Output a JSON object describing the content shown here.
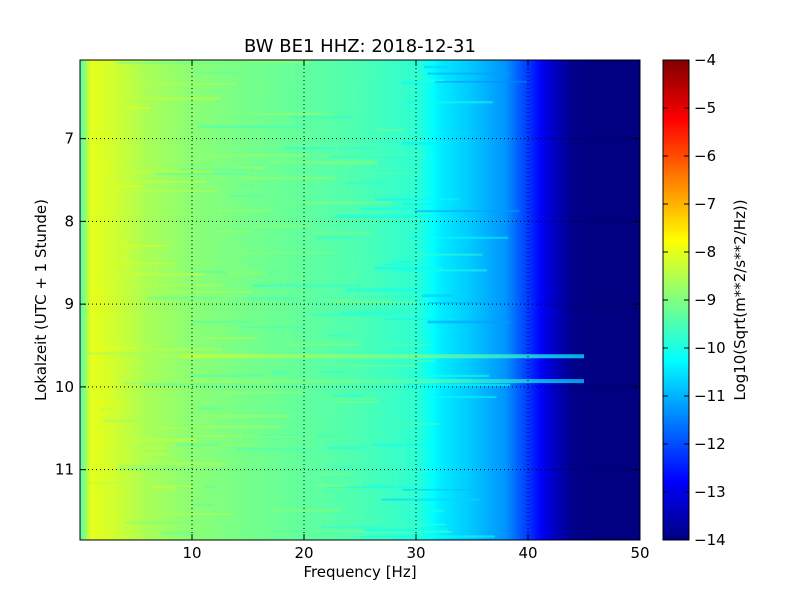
{
  "chart_data": {
    "type": "heatmap",
    "title": "BW BE1 HHZ: 2018-12-31",
    "xlabel": "Frequency [Hz]",
    "ylabel": "Lokalzeit (UTC + 1 Stunde)",
    "xlim": [
      0,
      50
    ],
    "ylim": [
      6.05,
      11.85
    ],
    "y_inverted": true,
    "x_ticks": [
      10,
      20,
      30,
      40,
      50
    ],
    "y_ticks": [
      7,
      8,
      9,
      10,
      11
    ],
    "grid": true,
    "colormap": "jet",
    "colorbar": {
      "label": "Log10(Sqrt(m**2/s**2/Hz))",
      "range": [
        -14,
        -4
      ],
      "ticks": [
        -4,
        -5,
        -6,
        -7,
        -8,
        -9,
        -10,
        -11,
        -12,
        -13,
        -14
      ]
    },
    "spectrum_profile": {
      "frequency_hz": [
        0,
        1,
        3,
        6,
        10,
        15,
        20,
        25,
        30,
        32,
        35,
        38,
        40,
        42,
        44,
        46,
        50
      ],
      "log10_amplitude": [
        -9.5,
        -8.0,
        -8.2,
        -8.6,
        -8.9,
        -9.1,
        -9.3,
        -9.5,
        -9.8,
        -10.4,
        -10.8,
        -11.3,
        -12.2,
        -13.2,
        -13.9,
        -14.0,
        -14.0
      ]
    },
    "narrowband_lines": [
      {
        "time_hour": 9.63,
        "from_hz": 9,
        "to_hz": 45,
        "log10_amplitude": -8.4
      },
      {
        "time_hour": 9.93,
        "from_hz": 9,
        "to_hz": 45,
        "log10_amplitude": -8.7
      }
    ]
  }
}
